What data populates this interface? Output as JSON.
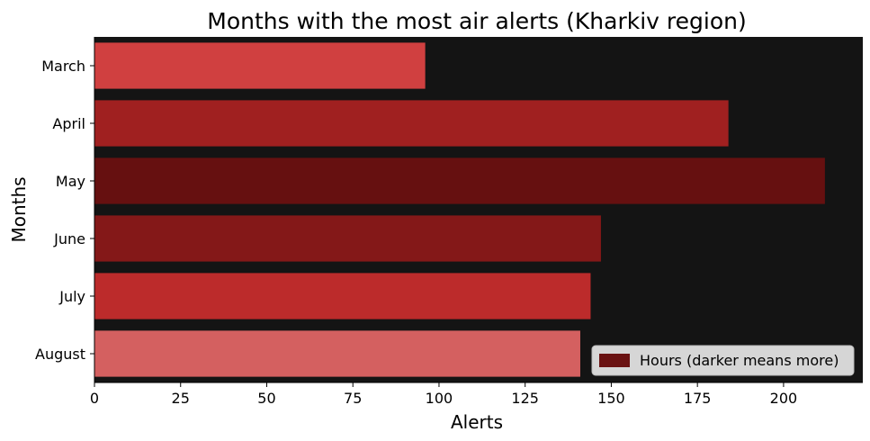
{
  "chart_data": {
    "type": "bar",
    "orientation": "horizontal",
    "title": "Months with the most air alerts (Kharkiv region)",
    "xlabel": "Alerts",
    "ylabel": "Months",
    "categories": [
      "March",
      "April",
      "May",
      "June",
      "July",
      "August"
    ],
    "values": [
      96,
      184,
      212,
      147,
      144,
      141
    ],
    "bar_colors": [
      "#d04040",
      "#a02020",
      "#661010",
      "#841818",
      "#bc2b2b",
      "#d46060"
    ],
    "xlim": [
      0,
      223
    ],
    "xticks": [
      0,
      25,
      50,
      75,
      100,
      125,
      150,
      175,
      200
    ],
    "legend": {
      "label": "Hours (darker means more)",
      "color": "#6a1212",
      "position": "bottom-right"
    },
    "grid": false,
    "background": "#141414"
  }
}
